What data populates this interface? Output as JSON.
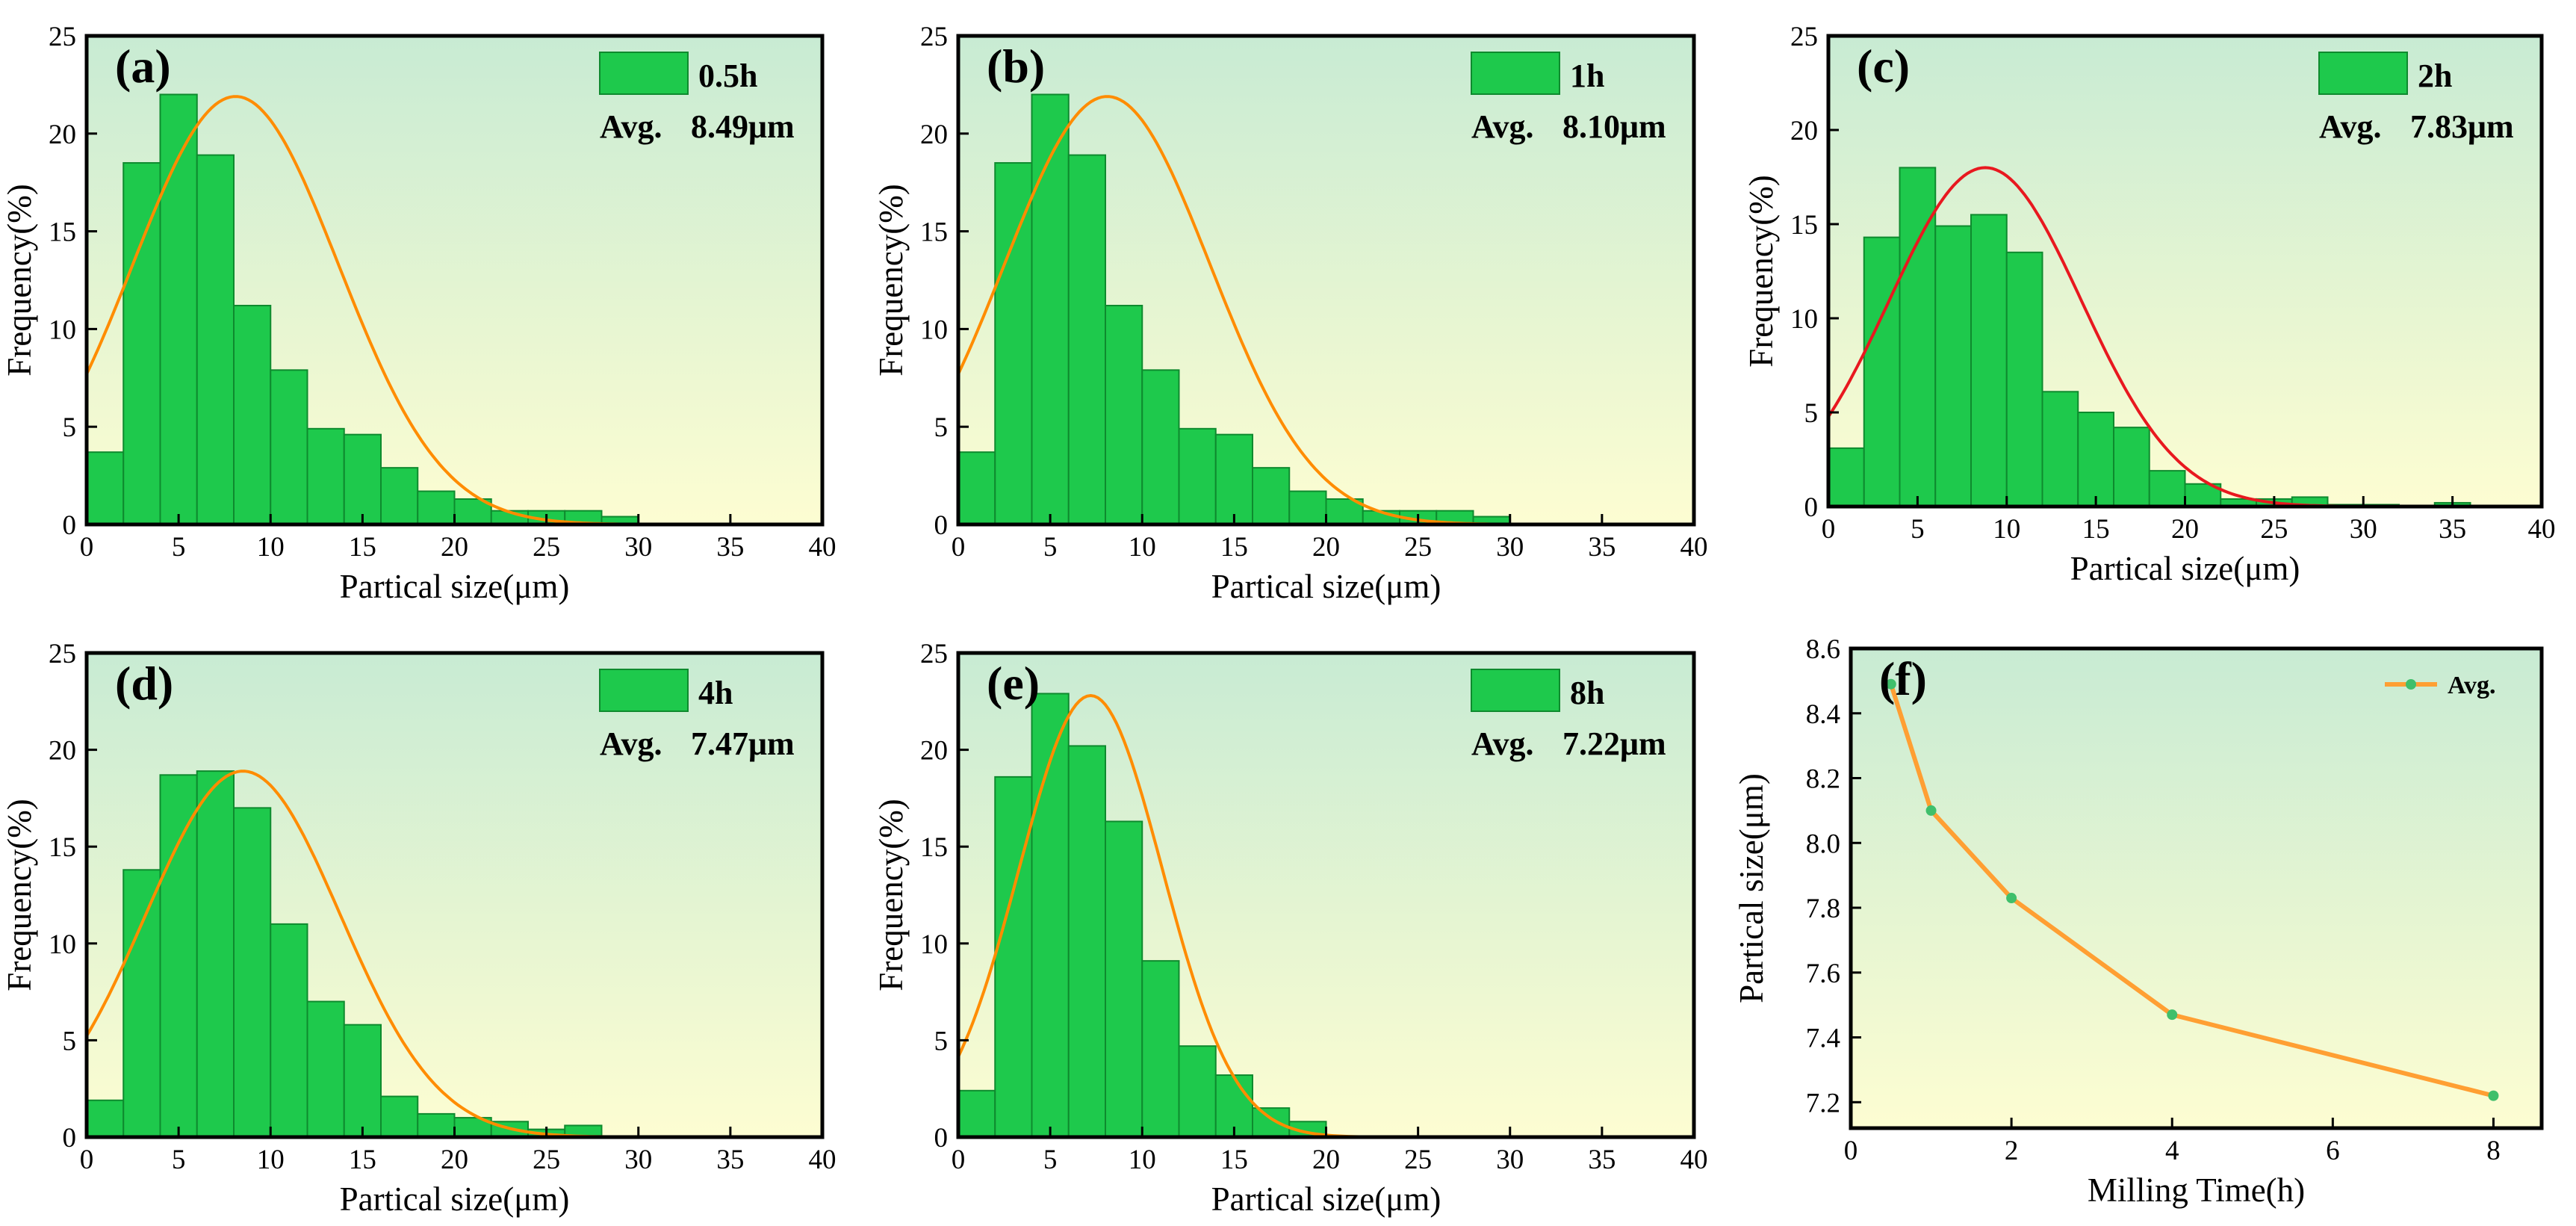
{
  "colors": {
    "bar_fill": "#1ec94c",
    "bar_stroke": "#0e8a2e",
    "fit_orange": "#ff8c00",
    "fit_red": "#e8181f",
    "line_orange": "#ff9f33",
    "marker": "#3fbf6b",
    "bg_top": "#c8ebd3",
    "bg_bottom": "#fdfdd2"
  },
  "chart_data": [
    {
      "id": "a",
      "type": "bar",
      "panel_label": "(a)",
      "legend_label": "0.5h",
      "avg_prefix": "Avg.",
      "avg_value": "8.49μm",
      "xlabel": "Partical size(μm)",
      "ylabel": "Frequency(%)",
      "xlim": [
        0,
        40
      ],
      "ylim": [
        0,
        25
      ],
      "xticks": [
        "0",
        "5",
        "10",
        "15",
        "20",
        "25",
        "30",
        "35",
        "40"
      ],
      "yticks": [
        "0",
        "5",
        "10",
        "15",
        "20",
        "25"
      ],
      "bin_width": 2,
      "bin_starts": [
        0,
        2,
        4,
        6,
        8,
        10,
        12,
        14,
        16,
        18,
        20,
        22,
        24,
        26,
        28
      ],
      "values": [
        3.7,
        18.5,
        22,
        18.9,
        11.2,
        7.9,
        4.9,
        4.6,
        2.9,
        1.7,
        1.3,
        0.7,
        0.7,
        0.7,
        0.4
      ],
      "fit": {
        "peak": 21.9,
        "mean": 8.1,
        "sd": 5.6,
        "color": "fit_orange"
      }
    },
    {
      "id": "b",
      "type": "bar",
      "panel_label": "(b)",
      "legend_label": "1h",
      "avg_prefix": "Avg.",
      "avg_value": "8.10μm",
      "xlabel": "Partical size(μm)",
      "ylabel": "Frequency(%)",
      "xlim": [
        0,
        40
      ],
      "ylim": [
        0,
        25
      ],
      "xticks": [
        "0",
        "5",
        "10",
        "15",
        "20",
        "25",
        "30",
        "35",
        "40"
      ],
      "yticks": [
        "0",
        "5",
        "10",
        "15",
        "20",
        "25"
      ],
      "bin_width": 2,
      "bin_starts": [
        0,
        2,
        4,
        6,
        8,
        10,
        12,
        14,
        16,
        18,
        20,
        22,
        24,
        26,
        28
      ],
      "values": [
        3.7,
        18.5,
        22,
        18.9,
        11.2,
        7.9,
        4.9,
        4.6,
        2.9,
        1.7,
        1.3,
        0.7,
        0.7,
        0.7,
        0.4
      ],
      "fit": {
        "peak": 21.9,
        "mean": 8.1,
        "sd": 5.6,
        "color": "fit_orange"
      }
    },
    {
      "id": "c",
      "type": "bar",
      "panel_label": "(c)",
      "legend_label": "2h",
      "avg_prefix": "Avg.",
      "avg_value": "7.83μm",
      "xlabel": "Partical size(μm)",
      "ylabel": "Frequency(%)",
      "xlim": [
        0,
        40
      ],
      "ylim": [
        0,
        25
      ],
      "xticks": [
        "0",
        "5",
        "10",
        "15",
        "20",
        "25",
        "30",
        "35",
        "40"
      ],
      "yticks": [
        "0",
        "5",
        "10",
        "15",
        "20",
        "25"
      ],
      "bin_width": 2,
      "bin_starts": [
        0,
        2,
        4,
        6,
        8,
        10,
        12,
        14,
        16,
        18,
        20,
        22,
        24,
        26,
        28,
        30,
        32,
        34
      ],
      "values": [
        3.1,
        14.3,
        18,
        14.9,
        15.5,
        13.5,
        6.1,
        5,
        4.2,
        1.9,
        1.2,
        0.4,
        0.4,
        0.5,
        0.1,
        0.1,
        0,
        0.2
      ],
      "fit": {
        "peak": 18,
        "mean": 8.8,
        "sd": 5.4,
        "color": "fit_red"
      }
    },
    {
      "id": "d",
      "type": "bar",
      "panel_label": "(d)",
      "legend_label": "4h",
      "avg_prefix": "Avg.",
      "avg_value": "7.47μm",
      "xlabel": "Partical size(μm)",
      "ylabel": "Frequency(%)",
      "xlim": [
        0,
        40
      ],
      "ylim": [
        0,
        25
      ],
      "xticks": [
        "0",
        "5",
        "10",
        "15",
        "20",
        "25",
        "30",
        "35",
        "40"
      ],
      "yticks": [
        "0",
        "5",
        "10",
        "15",
        "20",
        "25"
      ],
      "bin_width": 2,
      "bin_starts": [
        0,
        2,
        4,
        6,
        8,
        10,
        12,
        14,
        16,
        18,
        20,
        22,
        24,
        26
      ],
      "values": [
        1.9,
        13.8,
        18.7,
        18.9,
        17,
        11,
        7,
        5.8,
        2.1,
        1.2,
        1,
        0.8,
        0.4,
        0.6
      ],
      "fit": {
        "peak": 18.9,
        "mean": 8.5,
        "sd": 5.3,
        "color": "fit_orange"
      }
    },
    {
      "id": "e",
      "type": "bar",
      "panel_label": "(e)",
      "legend_label": "8h",
      "avg_prefix": "Avg.",
      "avg_value": "7.22μm",
      "xlabel": "Partical size(μm)",
      "ylabel": "Frequency(%)",
      "xlim": [
        0,
        40
      ],
      "ylim": [
        0,
        25
      ],
      "xticks": [
        "0",
        "5",
        "10",
        "15",
        "20",
        "25",
        "30",
        "35",
        "40"
      ],
      "yticks": [
        "0",
        "5",
        "10",
        "15",
        "20",
        "25"
      ],
      "bin_width": 2,
      "bin_starts": [
        0,
        2,
        4,
        6,
        8,
        10,
        12,
        14,
        16,
        18
      ],
      "values": [
        2.4,
        18.6,
        22.9,
        20.2,
        16.3,
        9.1,
        4.7,
        3.2,
        1.5,
        0.8
      ],
      "fit": {
        "peak": 22.8,
        "mean": 7.2,
        "sd": 3.9,
        "color": "fit_orange"
      }
    },
    {
      "id": "f",
      "type": "line",
      "panel_label": "(f)",
      "legend_label": "Avg.",
      "xlabel": "Milling Time(h)",
      "ylabel": "Partical size(μm)",
      "xlim": [
        0,
        8.6
      ],
      "ylim": [
        7.12,
        8.6
      ],
      "xtick_values": [
        0,
        2,
        4,
        6,
        8
      ],
      "xticks": [
        "0",
        "2",
        "4",
        "6",
        "8"
      ],
      "ytick_values": [
        7.2,
        7.4,
        7.6,
        7.8,
        8.0,
        8.2,
        8.4,
        8.6
      ],
      "yticks": [
        "7.2",
        "7.4",
        "7.6",
        "7.8",
        "8.0",
        "8.2",
        "8.4",
        "8.6"
      ],
      "x": [
        0.5,
        1,
        2,
        4,
        8
      ],
      "y": [
        8.49,
        8.1,
        7.83,
        7.47,
        7.22
      ]
    }
  ]
}
